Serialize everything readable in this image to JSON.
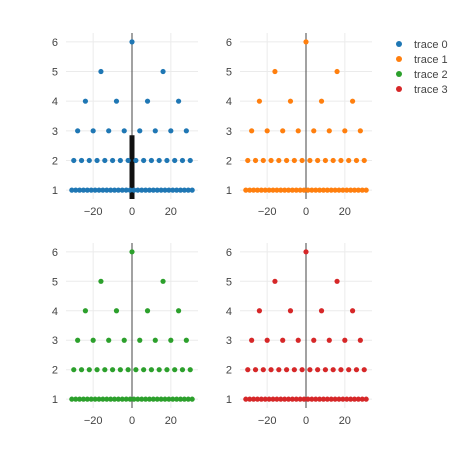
{
  "chart_data": {
    "type": "scatter",
    "layout": "2x2 subplots",
    "x_range": [
      -34,
      34
    ],
    "y_range": [
      0.7,
      6.3
    ],
    "x_ticks": [
      -20,
      0,
      20
    ],
    "y_ticks": [
      1,
      2,
      3,
      4,
      5,
      6
    ],
    "grid": true,
    "zero_line_x": true,
    "legend_position": "top-right",
    "series": [
      {
        "name": "trace 0",
        "color": "#1f77b4",
        "subplot": 1,
        "points": [
          {
            "y": 1,
            "x": [
              -31,
              -29,
              -27,
              -25,
              -23,
              -21,
              -19,
              -17,
              -15,
              -13,
              -11,
              -9,
              -7,
              -5,
              -3,
              -1,
              1,
              3,
              5,
              7,
              9,
              11,
              13,
              15,
              17,
              19,
              21,
              23,
              25,
              27,
              29,
              31
            ]
          },
          {
            "y": 2,
            "x": [
              -30,
              -26,
              -22,
              -18,
              -14,
              -10,
              -6,
              -2,
              2,
              6,
              10,
              14,
              18,
              22,
              26,
              30
            ]
          },
          {
            "y": 3,
            "x": [
              -28,
              -20,
              -12,
              -4,
              4,
              12,
              20,
              28
            ]
          },
          {
            "y": 4,
            "x": [
              -24,
              -8,
              8,
              24
            ]
          },
          {
            "y": 5,
            "x": [
              -16,
              16
            ]
          },
          {
            "y": 6,
            "x": [
              0
            ]
          }
        ]
      },
      {
        "name": "trace 1",
        "color": "#ff7f0e",
        "subplot": 2,
        "points": [
          {
            "y": 1,
            "x": [
              -31,
              -29,
              -27,
              -25,
              -23,
              -21,
              -19,
              -17,
              -15,
              -13,
              -11,
              -9,
              -7,
              -5,
              -3,
              -1,
              1,
              3,
              5,
              7,
              9,
              11,
              13,
              15,
              17,
              19,
              21,
              23,
              25,
              27,
              29,
              31
            ]
          },
          {
            "y": 2,
            "x": [
              -30,
              -26,
              -22,
              -18,
              -14,
              -10,
              -6,
              -2,
              2,
              6,
              10,
              14,
              18,
              22,
              26,
              30
            ]
          },
          {
            "y": 3,
            "x": [
              -28,
              -20,
              -12,
              -4,
              4,
              12,
              20,
              28
            ]
          },
          {
            "y": 4,
            "x": [
              -24,
              -8,
              8,
              24
            ]
          },
          {
            "y": 5,
            "x": [
              -16,
              16
            ]
          },
          {
            "y": 6,
            "x": [
              0
            ]
          }
        ]
      },
      {
        "name": "trace 2",
        "color": "#2ca02c",
        "subplot": 3,
        "points": [
          {
            "y": 1,
            "x": [
              -31,
              -29,
              -27,
              -25,
              -23,
              -21,
              -19,
              -17,
              -15,
              -13,
              -11,
              -9,
              -7,
              -5,
              -3,
              -1,
              1,
              3,
              5,
              7,
              9,
              11,
              13,
              15,
              17,
              19,
              21,
              23,
              25,
              27,
              29,
              31
            ]
          },
          {
            "y": 2,
            "x": [
              -30,
              -26,
              -22,
              -18,
              -14,
              -10,
              -6,
              -2,
              2,
              6,
              10,
              14,
              18,
              22,
              26,
              30
            ]
          },
          {
            "y": 3,
            "x": [
              -28,
              -20,
              -12,
              -4,
              4,
              12,
              20,
              28
            ]
          },
          {
            "y": 4,
            "x": [
              -24,
              -8,
              8,
              24
            ]
          },
          {
            "y": 5,
            "x": [
              -16,
              16
            ]
          },
          {
            "y": 6,
            "x": [
              0
            ]
          }
        ]
      },
      {
        "name": "trace 3",
        "color": "#d62728",
        "subplot": 4,
        "points": [
          {
            "y": 1,
            "x": [
              -31,
              -29,
              -27,
              -25,
              -23,
              -21,
              -19,
              -17,
              -15,
              -13,
              -11,
              -9,
              -7,
              -5,
              -3,
              -1,
              1,
              3,
              5,
              7,
              9,
              11,
              13,
              15,
              17,
              19,
              21,
              23,
              25,
              27,
              29,
              31
            ]
          },
          {
            "y": 2,
            "x": [
              -30,
              -26,
              -22,
              -18,
              -14,
              -10,
              -6,
              -2,
              2,
              6,
              10,
              14,
              18,
              22,
              26,
              30
            ]
          },
          {
            "y": 3,
            "x": [
              -28,
              -20,
              -12,
              -4,
              4,
              12,
              20,
              28
            ]
          },
          {
            "y": 4,
            "x": [
              -24,
              -8,
              8,
              24
            ]
          },
          {
            "y": 5,
            "x": [
              -16,
              16
            ]
          },
          {
            "y": 6,
            "x": [
              0
            ]
          }
        ]
      }
    ],
    "annotations": [
      {
        "subplot": 1,
        "kind": "thick-vertical-bar",
        "x": 0,
        "y_from": 0.7,
        "y_to": 2.85,
        "color": "#111111"
      }
    ]
  }
}
